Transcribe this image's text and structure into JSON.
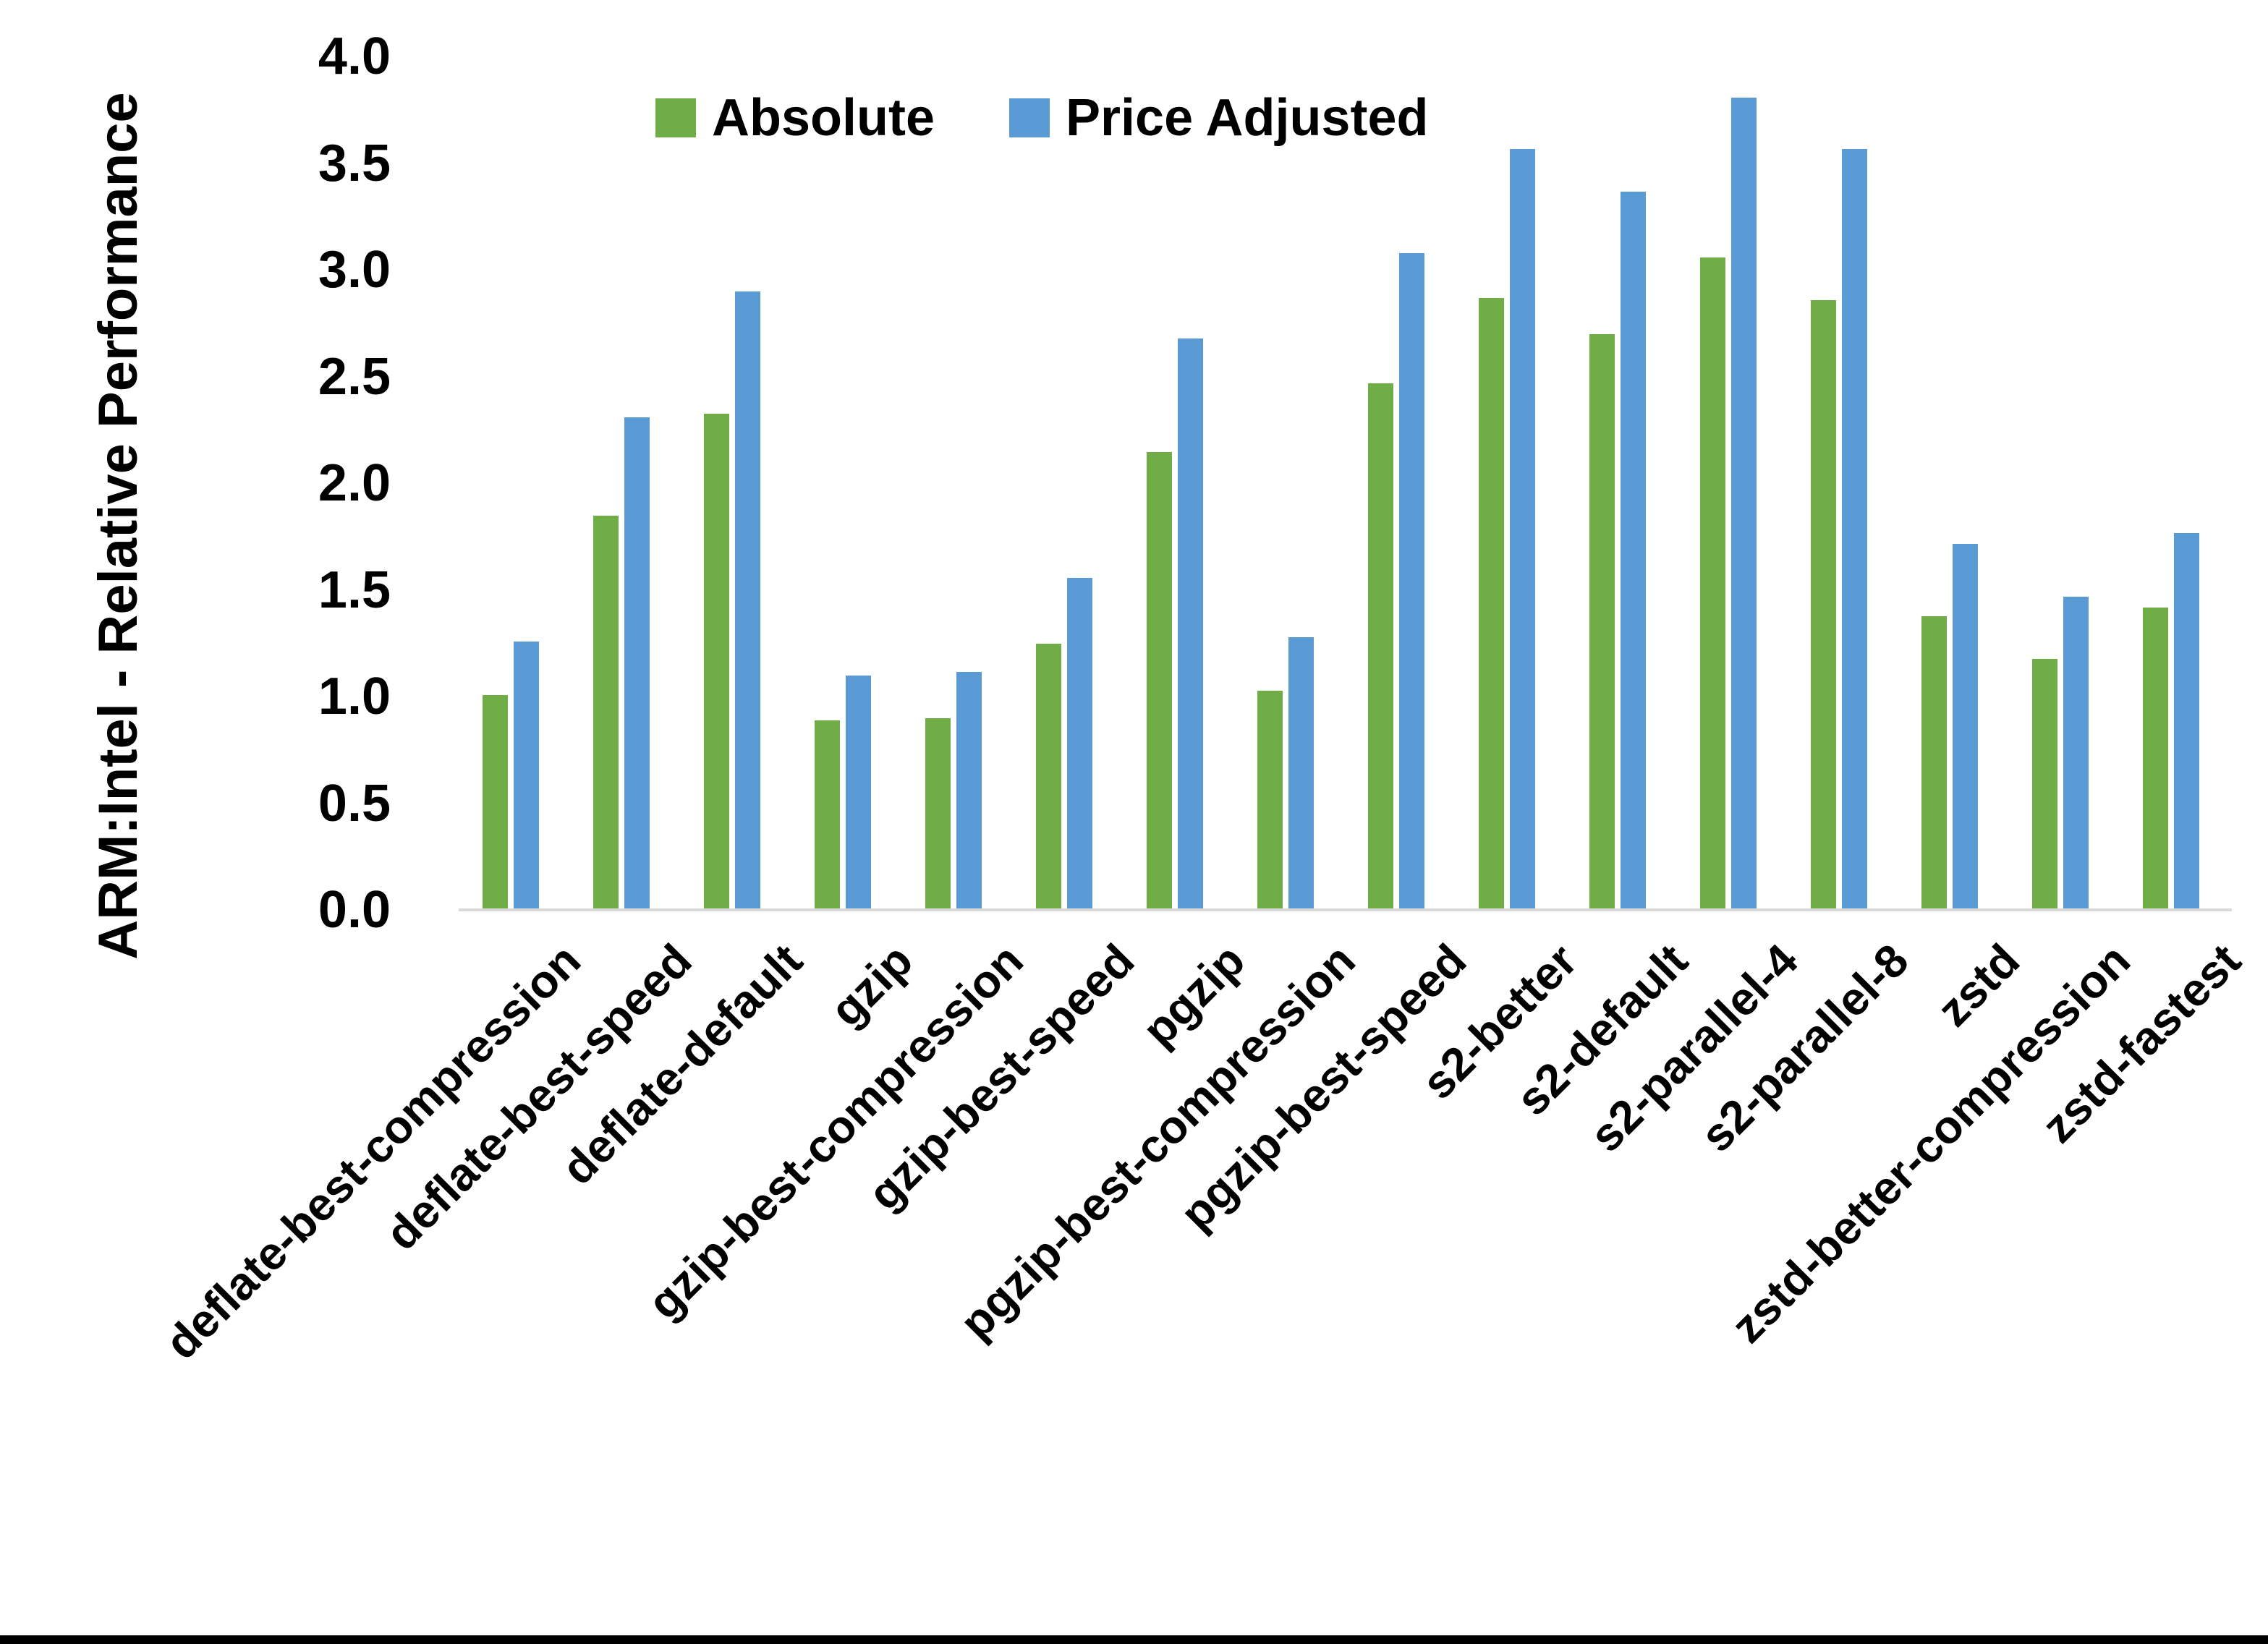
{
  "chart_data": {
    "type": "bar",
    "title": "",
    "ylabel": "ARM:Intel - Relative Performance",
    "xlabel": "",
    "ylim": [
      0.0,
      4.0
    ],
    "ytick_step": 0.5,
    "ytick_labels": [
      "0.0",
      "0.5",
      "1.0",
      "1.5",
      "2.0",
      "2.5",
      "3.0",
      "3.5",
      "4.0"
    ],
    "grid": false,
    "legend_position": "top",
    "background_color": "#ffffff",
    "axis_line_color": "#d9d9d9",
    "categories": [
      "deflate-best-compression",
      "deflate-best-speed",
      "deflate-default",
      "gzip",
      "gzip-best-compression",
      "gzip-best-speed",
      "pgzip",
      "pgzip-best-compression",
      "pgzip-best-speed",
      "s2-better",
      "s2-default",
      "s2-parallel-4",
      "s2-parallel-8",
      "zstd",
      "zstd-better-compression",
      "zstd-fastest"
    ],
    "series": [
      {
        "name": "Absolute",
        "color": "#70ad47",
        "values": [
          1.0,
          1.84,
          2.32,
          0.88,
          0.89,
          1.24,
          2.14,
          1.02,
          2.46,
          2.86,
          2.69,
          3.05,
          2.85,
          1.37,
          1.17,
          1.41
        ]
      },
      {
        "name": "Price Adjusted",
        "color": "#5b9bd5",
        "values": [
          1.25,
          2.3,
          2.89,
          1.09,
          1.11,
          1.55,
          2.67,
          1.27,
          3.07,
          3.56,
          3.36,
          3.8,
          3.56,
          1.71,
          1.46,
          1.76
        ]
      }
    ]
  },
  "legend": {
    "absolute_label": "Absolute",
    "price_adjusted_label": "Price Adjusted"
  }
}
